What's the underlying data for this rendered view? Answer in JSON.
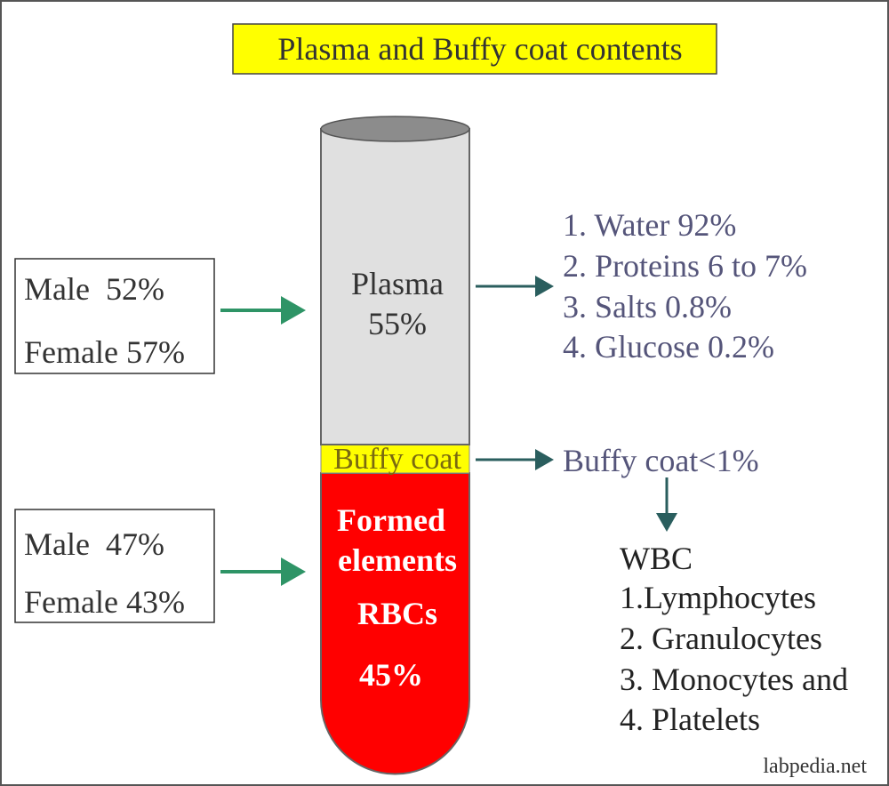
{
  "title": "Plasma and Buffy coat contents",
  "left_boxes": [
    {
      "lines": [
        "Male  52%",
        "Female 57%"
      ]
    },
    {
      "lines": [
        "Male  47%",
        "Female 43%"
      ]
    }
  ],
  "tube": {
    "plasma": [
      "Plasma",
      "55%"
    ],
    "buffy_coat": "Buffy coat",
    "formed_elements": [
      "Formed",
      "elements",
      "RBCs",
      "45%"
    ]
  },
  "plasma_contents": [
    "1. Water 92%",
    "2. Proteins 6 to 7%",
    "3. Salts 0.8%",
    "4. Glucose 0.2%"
  ],
  "buffy_coat_label": "Buffy coat<1%",
  "wbc": {
    "heading": "WBC",
    "items": [
      "1.Lymphocytes",
      "2. Granulocytes",
      "3. Monocytes and",
      "4. Platelets"
    ]
  },
  "footer": "labpedia.net"
}
